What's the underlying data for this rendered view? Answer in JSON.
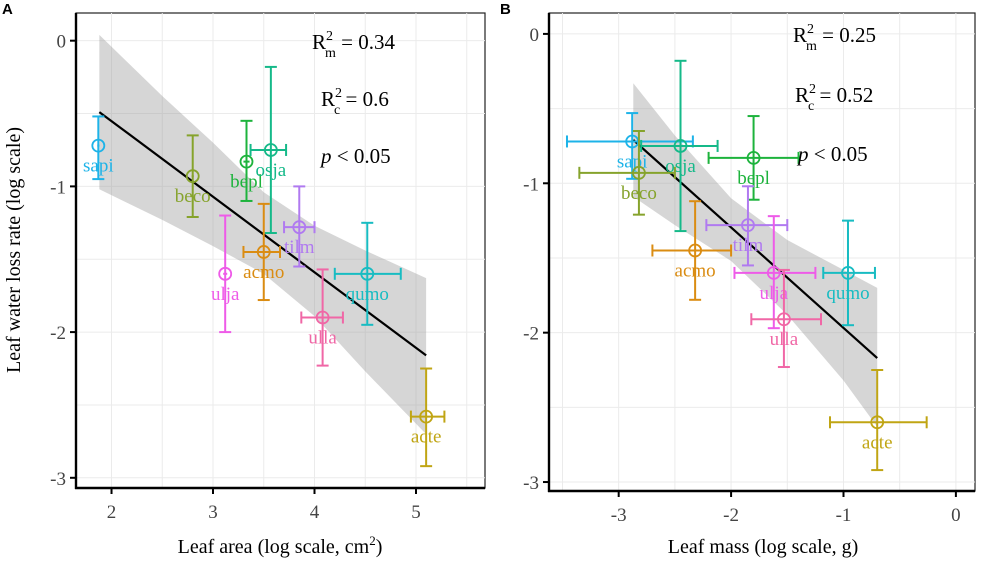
{
  "chart_data": [
    {
      "panel": "A",
      "type": "scatter",
      "xlabel": "Leaf area (log scale, cm",
      "xlabel_sup": "2",
      "xlabel_end": ")",
      "ylabel": "Leaf water loss rate (log scale)",
      "xlim": [
        1.65,
        5.68
      ],
      "ylim": [
        -3.07,
        0.19
      ],
      "xticks": [
        2,
        3,
        4,
        5
      ],
      "xtick_labels": [
        "2",
        "3",
        "4",
        "5"
      ],
      "yticks": [
        0,
        -1,
        -2,
        -3
      ],
      "ytick_labels": [
        "0",
        "-1",
        "-2",
        "-3"
      ],
      "grid": true,
      "annotations": {
        "rm": {
          "prefix": "R",
          "sup": "2",
          "sub": "m",
          "text": " = 0.34"
        },
        "rc": {
          "prefix": "R",
          "sup": "2",
          "sub": "c",
          "text": " = 0.6"
        },
        "p": {
          "italic": "p",
          "text": " < 0.05"
        }
      },
      "regression": {
        "x": [
          1.88,
          5.1
        ],
        "y": [
          -0.49,
          -2.16
        ],
        "ci_upper": [
          [
            1.88,
            0.04
          ],
          [
            2.5,
            -0.38
          ],
          [
            3.0,
            -0.7
          ],
          [
            3.5,
            -1.04
          ],
          [
            4.0,
            -1.27
          ],
          [
            4.5,
            -1.44
          ],
          [
            5.1,
            -1.63
          ]
        ],
        "ci_lower": [
          [
            1.88,
            -1.02
          ],
          [
            2.5,
            -1.23
          ],
          [
            3.0,
            -1.41
          ],
          [
            3.5,
            -1.6
          ],
          [
            4.0,
            -1.89
          ],
          [
            4.5,
            -2.27
          ],
          [
            5.1,
            -2.7
          ]
        ]
      },
      "points": [
        {
          "species": "sapi",
          "color": "#1DB3E8",
          "x": 1.87,
          "y": -0.72,
          "xerr": [
            1.86,
            1.88
          ],
          "yerr": [
            -0.52,
            -0.95
          ],
          "label_dx": 0,
          "label_dy": 1
        },
        {
          "species": "beco",
          "color": "#86A32C",
          "x": 2.8,
          "y": -0.93,
          "xerr": [
            2.79,
            2.81
          ],
          "yerr": [
            -0.65,
            -1.21
          ],
          "label_dx": -0.05,
          "label_dy": 1
        },
        {
          "species": "bepl",
          "color": "#1DB33C",
          "x": 3.33,
          "y": -0.83,
          "xerr": [
            3.3,
            3.36
          ],
          "yerr": [
            -0.55,
            -1.1
          ],
          "label_dx": 0.02,
          "label_dy": 1
        },
        {
          "species": "osja",
          "color": "#15B989",
          "x": 3.57,
          "y": -0.75,
          "xerr": [
            3.37,
            3.72
          ],
          "yerr": [
            -0.18,
            -1.32
          ],
          "label_dx": 0.05,
          "label_dy": 1
        },
        {
          "species": "tilm",
          "color": "#B07AF0",
          "x": 3.85,
          "y": -1.28,
          "xerr": [
            3.7,
            4.0
          ],
          "yerr": [
            -1.0,
            -1.55
          ],
          "label_dx": -0.1,
          "label_dy": 1
        },
        {
          "species": "acmo",
          "color": "#DA8C12",
          "x": 3.5,
          "y": -1.45,
          "xerr": [
            3.3,
            3.66
          ],
          "yerr": [
            -1.12,
            -1.78
          ],
          "label_dx": 0.0,
          "label_dy": 1
        },
        {
          "species": "ulja",
          "color": "#EE5BE8",
          "x": 3.12,
          "y": -1.6,
          "xerr": [
            3.1,
            3.14
          ],
          "yerr": [
            -1.2,
            -2.0
          ],
          "label_dx": 0,
          "label_dy": 1
        },
        {
          "species": "qumo",
          "color": "#18BCC2",
          "x": 4.52,
          "y": -1.6,
          "xerr": [
            4.2,
            4.85
          ],
          "yerr": [
            -1.25,
            -1.95
          ],
          "label_dx": 0,
          "label_dy": 1
        },
        {
          "species": "ulla",
          "color": "#F067A6",
          "x": 4.08,
          "y": -1.9,
          "xerr": [
            3.87,
            4.28
          ],
          "yerr": [
            -1.57,
            -2.23
          ],
          "label_dx": 0,
          "label_dy": 1
        },
        {
          "species": "acte",
          "color": "#C0A514",
          "x": 5.1,
          "y": -2.58,
          "xerr": [
            4.95,
            5.28
          ],
          "yerr": [
            -2.25,
            -2.92
          ],
          "label_dx": 0,
          "label_dy": 1
        }
      ]
    },
    {
      "panel": "B",
      "type": "scatter",
      "xlabel": "Leaf mass (log scale, g)",
      "ylabel": "",
      "xlim": [
        -3.62,
        0.17
      ],
      "ylim": [
        -3.06,
        0.14
      ],
      "xticks": [
        -3,
        -2,
        -1,
        0
      ],
      "xtick_labels": [
        "-3",
        "-2",
        "-1",
        "0"
      ],
      "yticks": [
        0,
        -1,
        -2,
        -3
      ],
      "ytick_labels": [
        "0",
        "-1",
        "-2",
        "-3"
      ],
      "grid": true,
      "annotations": {
        "rm": {
          "prefix": "R",
          "sup": "2",
          "sub": "m",
          "text": " = 0.25"
        },
        "rc": {
          "prefix": "R",
          "sup": "2",
          "sub": "c",
          "text": " = 0.52"
        },
        "p": {
          "italic": "p",
          "text": " < 0.05"
        }
      },
      "regression": {
        "x": [
          -2.87,
          -0.7
        ],
        "y": [
          -0.71,
          -2.17
        ],
        "ci_upper": [
          [
            -2.87,
            -0.33
          ],
          [
            -2.5,
            -0.68
          ],
          [
            -2.0,
            -1.1
          ],
          [
            -1.5,
            -1.38
          ],
          [
            -1.0,
            -1.58
          ],
          [
            -0.7,
            -1.7
          ]
        ],
        "ci_lower": [
          [
            -2.87,
            -1.09
          ],
          [
            -2.5,
            -1.28
          ],
          [
            -2.0,
            -1.52
          ],
          [
            -1.5,
            -1.88
          ],
          [
            -1.0,
            -2.32
          ],
          [
            -0.7,
            -2.63
          ]
        ]
      },
      "points": [
        {
          "species": "sapi",
          "color": "#1DB3E8",
          "x": -2.88,
          "y": -0.72,
          "xerr": [
            -3.46,
            -2.34
          ],
          "yerr": [
            -0.53,
            -0.97
          ],
          "label_dx": 0,
          "label_dy": 1
        },
        {
          "species": "osja",
          "color": "#15B989",
          "x": -2.45,
          "y": -0.75,
          "xerr": [
            -2.8,
            -2.12
          ],
          "yerr": [
            -0.18,
            -1.32
          ],
          "label_dx": 0.05,
          "label_dy": 1
        },
        {
          "species": "beco",
          "color": "#86A32C",
          "x": -2.82,
          "y": -0.93,
          "xerr": [
            -3.35,
            -2.5
          ],
          "yerr": [
            -0.65,
            -1.21
          ],
          "label_dx": 0.02,
          "label_dy": 1
        },
        {
          "species": "bepl",
          "color": "#1DB33C",
          "x": -1.8,
          "y": -0.83,
          "xerr": [
            -2.2,
            -1.4
          ],
          "yerr": [
            -0.55,
            -1.11
          ],
          "label_dx": 0,
          "label_dy": 1
        },
        {
          "species": "tilm",
          "color": "#B07AF0",
          "x": -1.85,
          "y": -1.28,
          "xerr": [
            -2.22,
            -1.5
          ],
          "yerr": [
            -1.02,
            -1.55
          ],
          "label_dx": 0,
          "label_dy": 1
        },
        {
          "species": "acmo",
          "color": "#DA8C12",
          "x": -2.32,
          "y": -1.45,
          "xerr": [
            -2.7,
            -2.0
          ],
          "yerr": [
            -1.12,
            -1.78
          ],
          "label_dx": 0,
          "label_dy": 1
        },
        {
          "species": "ulja",
          "color": "#EE5BE8",
          "x": -1.62,
          "y": -1.6,
          "xerr": [
            -1.97,
            -1.25
          ],
          "yerr": [
            -1.22,
            -1.97
          ],
          "label_dx": 0,
          "label_dy": 1
        },
        {
          "species": "qumo",
          "color": "#18BCC2",
          "x": -0.96,
          "y": -1.6,
          "xerr": [
            -1.18,
            -0.72
          ],
          "yerr": [
            -1.25,
            -1.95
          ],
          "label_dx": 0,
          "label_dy": 1
        },
        {
          "species": "ulla",
          "color": "#F067A6",
          "x": -1.53,
          "y": -1.91,
          "xerr": [
            -1.82,
            -1.2
          ],
          "yerr": [
            -1.58,
            -2.23
          ],
          "label_dx": 0,
          "label_dy": 1
        },
        {
          "species": "acte",
          "color": "#C0A514",
          "x": -0.7,
          "y": -2.6,
          "xerr": [
            -1.12,
            -0.26
          ],
          "yerr": [
            -2.25,
            -2.92
          ],
          "label_dx": 0,
          "label_dy": 1
        }
      ]
    }
  ]
}
